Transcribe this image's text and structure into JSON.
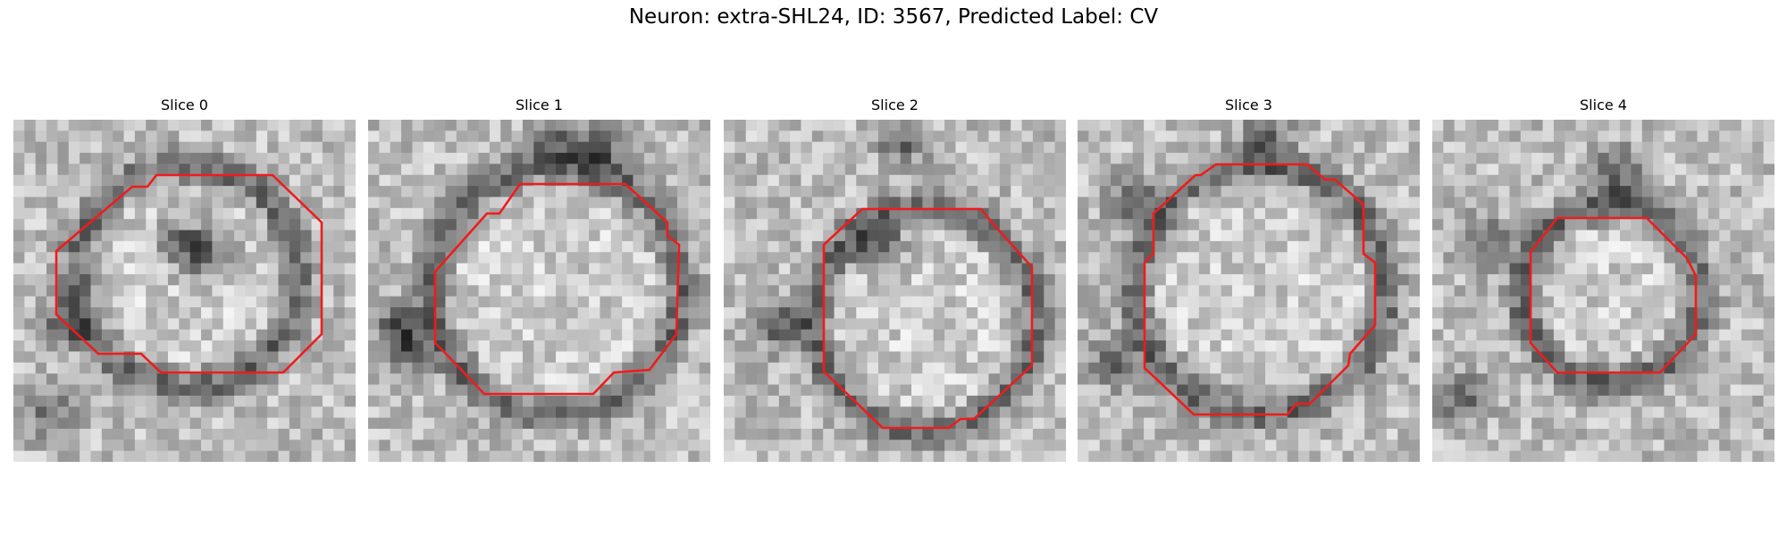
{
  "figure": {
    "title": "Neuron: extra-SHL24, ID: 3567, Predicted Label: CV"
  },
  "colors": {
    "contour": "#ee1c1c",
    "background": "#ffffff"
  },
  "panels": [
    {
      "title": "Slice 0"
    },
    {
      "title": "Slice 1"
    },
    {
      "title": "Slice 2"
    },
    {
      "title": "Slice 3"
    },
    {
      "title": "Slice 4"
    }
  ]
}
